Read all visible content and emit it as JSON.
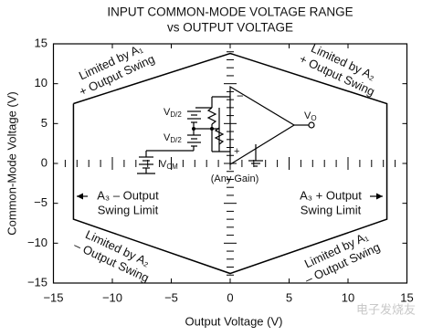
{
  "chart_data": {
    "type": "line",
    "title": [
      "INPUT COMMON-MODE VOLTAGE RANGE",
      "vs OUTPUT VOLTAGE"
    ],
    "x_label": "Output Voltage (V)",
    "y_label": "Common-Mode Voltage (V)",
    "xlim": [
      -15,
      15
    ],
    "ylim": [
      -15,
      15
    ],
    "xticks": [
      {
        "value": -15,
        "label": "−15"
      },
      {
        "value": -10,
        "label": "−10"
      },
      {
        "value": -5,
        "label": "−5"
      },
      0,
      5,
      10,
      15
    ],
    "yticks": [
      {
        "value": -15,
        "label": "−15"
      },
      {
        "value": -10,
        "label": "−10"
      },
      {
        "value": -5,
        "label": "−5"
      },
      0,
      5,
      10,
      15
    ],
    "minor_ticks": true,
    "series": [
      {
        "color": "#000000",
        "x": [
          -13.3,
          0,
          13.3,
          13.3,
          0,
          -13.3,
          -13.3
        ],
        "values": [
          7.5,
          13.8,
          7.5,
          -7,
          -13.8,
          -7,
          7.5
        ]
      }
    ],
    "annotations": [
      [
        "Limited by A₁",
        "+ Output Swing"
      ],
      [
        "Limited by A₂",
        "+ Output Swing"
      ],
      [
        "A₃ – Output",
        "Swing Limit"
      ],
      [
        "A₃ + Output",
        "Swing Limit"
      ],
      [
        "Limited by A₂",
        "– Output Swing"
      ],
      [
        "Limited by A₁",
        "– Output Swing"
      ]
    ],
    "circuit": {
      "vd_top": [
        "V",
        "D/2"
      ],
      "vd_bottom": [
        "V",
        "D/2"
      ],
      "vcm": [
        "V",
        "CM"
      ],
      "vo": [
        "V",
        "O"
      ],
      "minus": "−",
      "plus": "+",
      "gain": "(Any Gain)"
    },
    "watermark": "电子发烧友"
  }
}
